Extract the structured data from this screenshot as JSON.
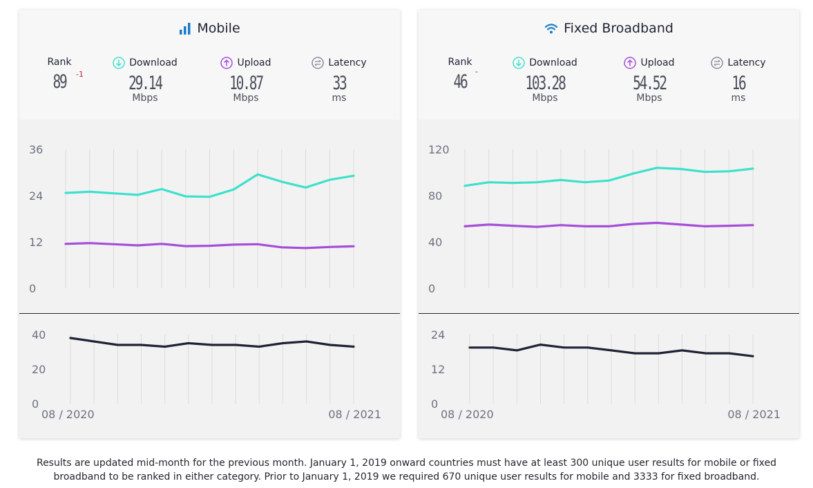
{
  "mobile": {
    "title": "Mobile",
    "icon": "signal-bars-icon",
    "rank": {
      "label": "Rank",
      "value": "89",
      "change": "-1"
    },
    "download": {
      "label": "Download",
      "value": "29.14",
      "unit": "Mbps"
    },
    "upload": {
      "label": "Upload",
      "value": "10.87",
      "unit": "Mbps"
    },
    "latency": {
      "label": "Latency",
      "value": "33",
      "unit": "ms"
    }
  },
  "fixed": {
    "title": "Fixed Broadband",
    "icon": "wifi-icon",
    "rank": {
      "label": "Rank",
      "value": "46",
      "change": "-"
    },
    "download": {
      "label": "Download",
      "value": "103.28",
      "unit": "Mbps"
    },
    "upload": {
      "label": "Upload",
      "value": "54.52",
      "unit": "Mbps"
    },
    "latency": {
      "label": "Latency",
      "value": "16",
      "unit": "ms"
    }
  },
  "colors": {
    "download": "#3ee0cd",
    "upload": "#a44ed8",
    "latency": "#1e2235",
    "rank_change": "#c2233b"
  },
  "footer": {
    "line1": "Results are updated mid-month for the previous month. January 1, 2019 onward countries must have at least 300 unique user results for mobile or fixed",
    "line2": "broadband to be ranked in either category. Prior to January 1, 2019 we required 670 unique user results for mobile and 3333 for fixed broadband."
  },
  "chart_data": [
    {
      "id": "mobile-speed",
      "type": "line",
      "title": "Mobile",
      "x": [
        "08/2020",
        "09/2020",
        "10/2020",
        "11/2020",
        "12/2020",
        "01/2021",
        "02/2021",
        "03/2021",
        "04/2021",
        "05/2021",
        "06/2021",
        "07/2021",
        "08/2021"
      ],
      "yticks": [
        "36",
        "24",
        "12",
        "0"
      ],
      "ylim": [
        0,
        36
      ],
      "series": [
        {
          "name": "Download",
          "values": [
            24.7,
            25.0,
            24.6,
            24.2,
            25.7,
            23.8,
            23.7,
            25.6,
            29.5,
            27.6,
            26.1,
            28.1,
            29.14
          ]
        },
        {
          "name": "Upload",
          "values": [
            11.5,
            11.7,
            11.4,
            11.1,
            11.5,
            10.9,
            11.0,
            11.3,
            11.4,
            10.6,
            10.4,
            10.7,
            10.87
          ]
        }
      ]
    },
    {
      "id": "mobile-latency",
      "type": "line",
      "x": [
        "08/2020",
        "09/2020",
        "10/2020",
        "11/2020",
        "12/2020",
        "01/2021",
        "02/2021",
        "03/2021",
        "04/2021",
        "05/2021",
        "06/2021",
        "07/2021",
        "08/2021"
      ],
      "xtick_labels": [
        "08 / 2020",
        "08 / 2021"
      ],
      "yticks": [
        "40",
        "20",
        "0"
      ],
      "ylim": [
        0,
        40
      ],
      "series": [
        {
          "name": "Latency",
          "values": [
            38,
            36,
            34,
            34,
            33,
            35,
            34,
            34,
            33,
            35,
            36,
            34,
            33
          ]
        }
      ]
    },
    {
      "id": "fixed-speed",
      "type": "line",
      "title": "Fixed Broadband",
      "x": [
        "08/2020",
        "09/2020",
        "10/2020",
        "11/2020",
        "12/2020",
        "01/2021",
        "02/2021",
        "03/2021",
        "04/2021",
        "05/2021",
        "06/2021",
        "07/2021",
        "08/2021"
      ],
      "yticks": [
        "120",
        "80",
        "40",
        "0"
      ],
      "ylim": [
        0,
        120
      ],
      "series": [
        {
          "name": "Download",
          "values": [
            88.5,
            91.5,
            91.0,
            91.5,
            93.5,
            91.5,
            93.0,
            99.0,
            104.0,
            103.0,
            100.5,
            101.0,
            103.28
          ]
        },
        {
          "name": "Upload",
          "values": [
            53.5,
            55.0,
            54.0,
            53.0,
            54.5,
            53.5,
            53.5,
            55.5,
            56.5,
            55.0,
            53.5,
            54.0,
            54.52
          ]
        }
      ]
    },
    {
      "id": "fixed-latency",
      "type": "line",
      "x": [
        "08/2020",
        "09/2020",
        "10/2020",
        "11/2020",
        "12/2020",
        "01/2021",
        "02/2021",
        "03/2021",
        "04/2021",
        "05/2021",
        "06/2021",
        "07/2021",
        "08/2021"
      ],
      "xtick_labels": [
        "08 / 2020",
        "08 / 2021"
      ],
      "yticks": [
        "24",
        "12",
        "0"
      ],
      "ylim": [
        0,
        24
      ],
      "series": [
        {
          "name": "Latency",
          "values": [
            19.5,
            19.5,
            18.5,
            20.5,
            19.5,
            19.5,
            18.5,
            17.5,
            17.5,
            18.5,
            17.5,
            17.5,
            16.5
          ]
        }
      ]
    }
  ]
}
